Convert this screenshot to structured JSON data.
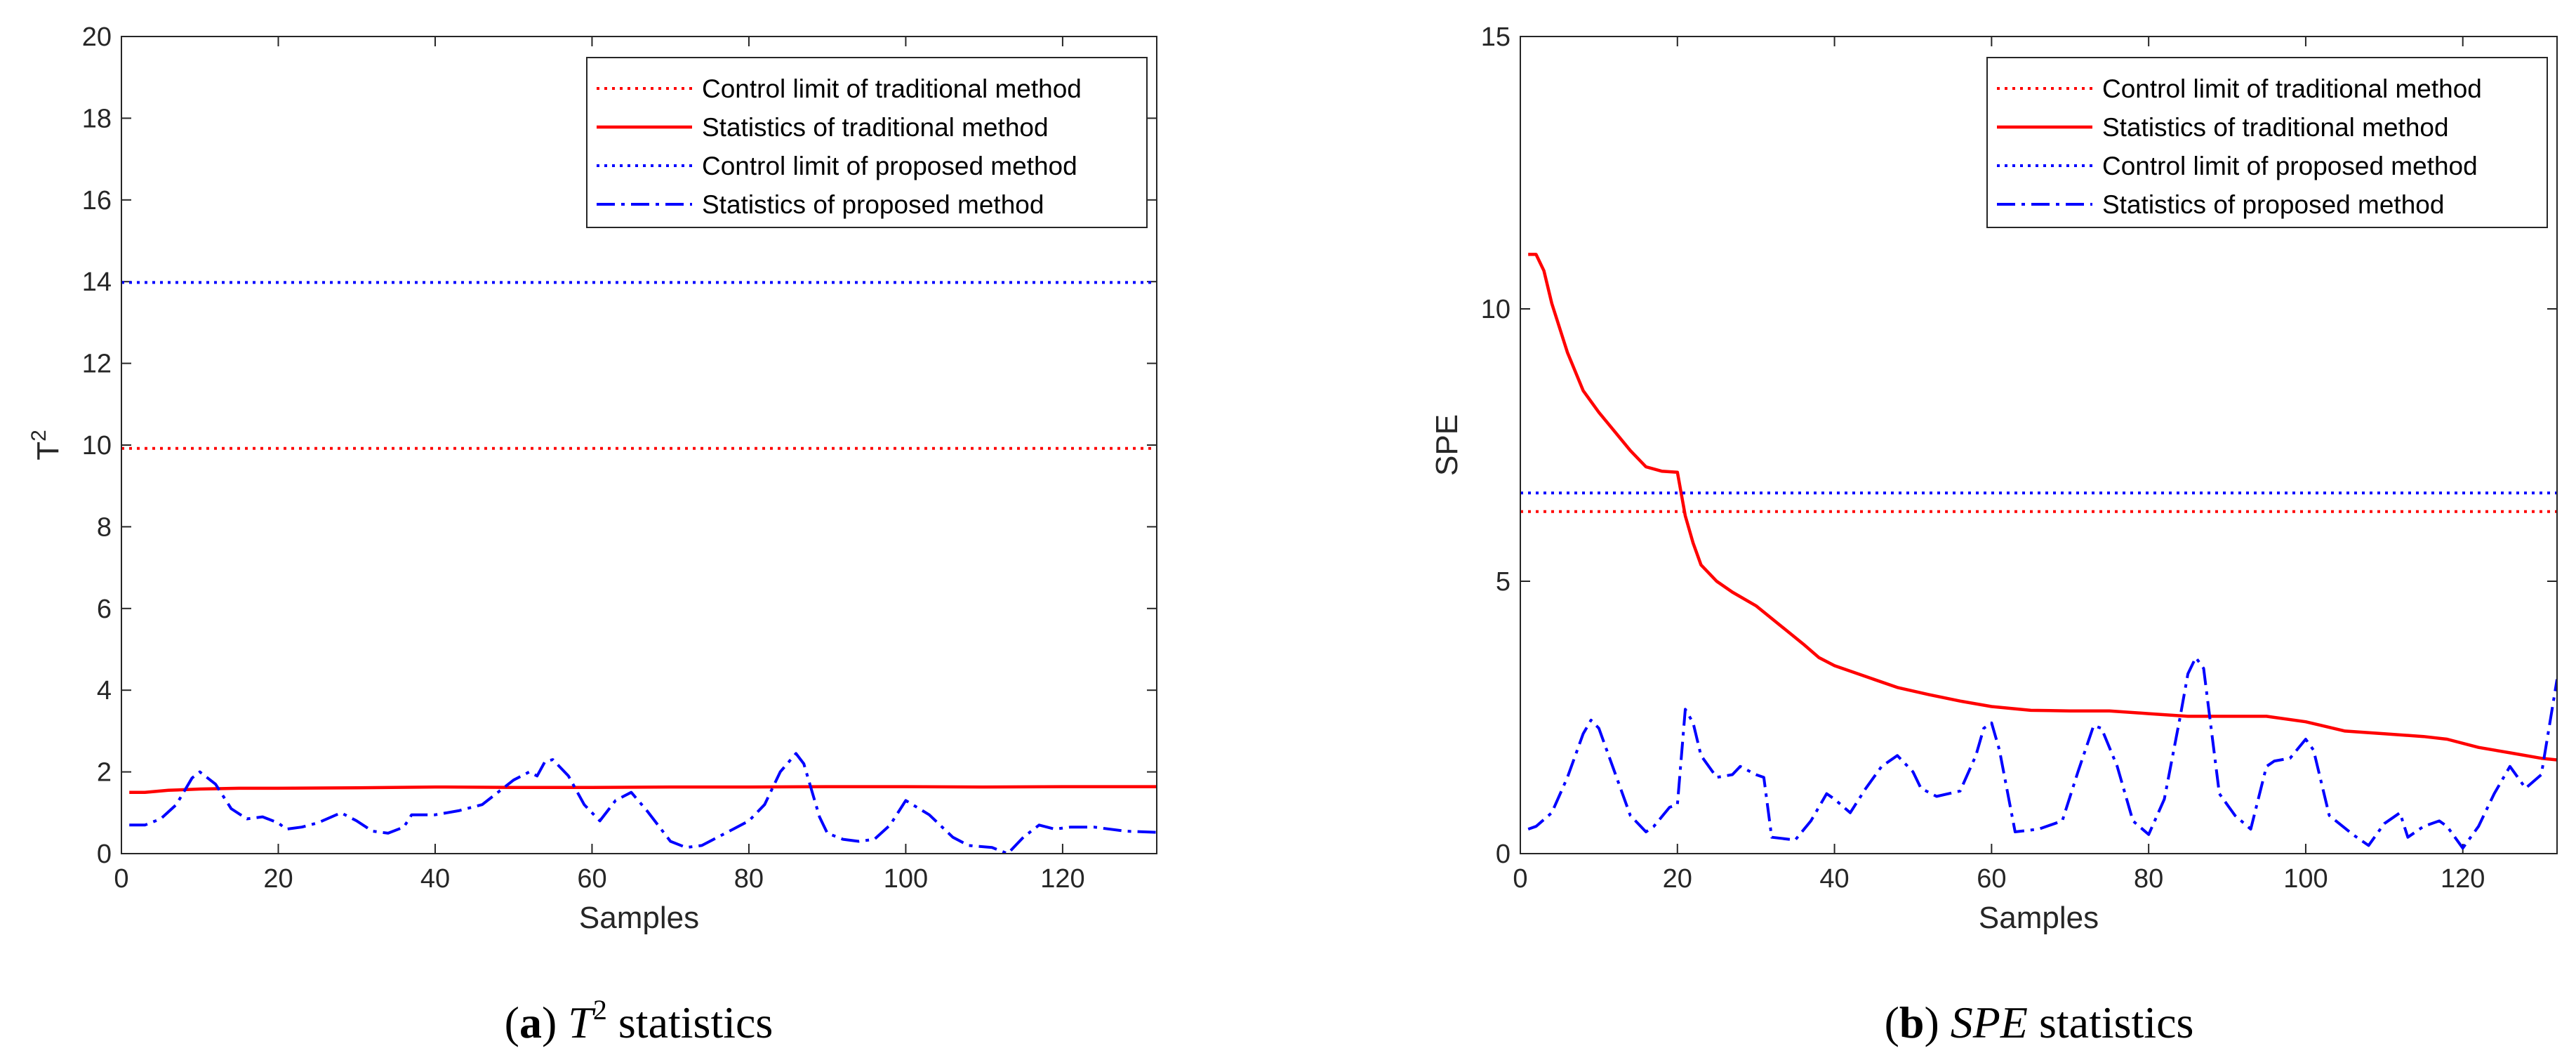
{
  "chart_data": [
    {
      "type": "line",
      "panel": "a",
      "caption": {
        "letter": "a",
        "symbol": "T",
        "sup": "2",
        "rest": " statistics"
      },
      "xlabel": "Samples",
      "ylabel": {
        "main": "T",
        "sup": "2"
      },
      "xlim": [
        0,
        132
      ],
      "ylim": [
        0,
        20
      ],
      "xticks": [
        0,
        20,
        40,
        60,
        80,
        100,
        120
      ],
      "yticks": [
        0,
        2,
        4,
        6,
        8,
        10,
        12,
        14,
        16,
        18,
        20
      ],
      "legend_position": "top-right",
      "series": [
        {
          "name": "Control limit of traditional method",
          "color": "#ff0000",
          "style": "dotted",
          "points": [
            [
              0,
              9.92
            ],
            [
              132,
              9.92
            ]
          ]
        },
        {
          "name": "Statistics of traditional method",
          "color": "#ff0000",
          "style": "solid",
          "points": [
            [
              1,
              1.5
            ],
            [
              3,
              1.5
            ],
            [
              6,
              1.55
            ],
            [
              10,
              1.58
            ],
            [
              15,
              1.6
            ],
            [
              20,
              1.6
            ],
            [
              30,
              1.61
            ],
            [
              40,
              1.63
            ],
            [
              50,
              1.62
            ],
            [
              60,
              1.62
            ],
            [
              70,
              1.63
            ],
            [
              80,
              1.63
            ],
            [
              90,
              1.64
            ],
            [
              100,
              1.64
            ],
            [
              110,
              1.63
            ],
            [
              120,
              1.64
            ],
            [
              132,
              1.64
            ]
          ]
        },
        {
          "name": "Control limit of proposed method",
          "color": "#0000ff",
          "style": "dotted",
          "points": [
            [
              0,
              13.98
            ],
            [
              132,
              13.98
            ]
          ]
        },
        {
          "name": "Statistics of proposed method",
          "color": "#0000ff",
          "style": "dashdot",
          "points": [
            [
              1,
              0.7
            ],
            [
              3,
              0.7
            ],
            [
              5,
              0.85
            ],
            [
              7,
              1.2
            ],
            [
              9,
              1.85
            ],
            [
              10,
              2.0
            ],
            [
              12,
              1.7
            ],
            [
              14,
              1.1
            ],
            [
              16,
              0.85
            ],
            [
              18,
              0.9
            ],
            [
              20,
              0.75
            ],
            [
              21,
              0.6
            ],
            [
              23,
              0.65
            ],
            [
              25,
              0.75
            ],
            [
              28,
              1.0
            ],
            [
              30,
              0.8
            ],
            [
              32,
              0.55
            ],
            [
              34,
              0.5
            ],
            [
              36,
              0.65
            ],
            [
              37,
              0.95
            ],
            [
              40,
              0.95
            ],
            [
              43,
              1.05
            ],
            [
              46,
              1.2
            ],
            [
              48,
              1.5
            ],
            [
              50,
              1.8
            ],
            [
              52,
              2.0
            ],
            [
              53,
              1.9
            ],
            [
              54,
              2.25
            ],
            [
              55,
              2.3
            ],
            [
              57,
              1.9
            ],
            [
              59,
              1.2
            ],
            [
              61,
              0.8
            ],
            [
              63,
              1.3
            ],
            [
              65,
              1.5
            ],
            [
              67,
              1.05
            ],
            [
              70,
              0.3
            ],
            [
              72,
              0.15
            ],
            [
              74,
              0.2
            ],
            [
              78,
              0.6
            ],
            [
              80,
              0.8
            ],
            [
              82,
              1.2
            ],
            [
              84,
              2.0
            ],
            [
              86,
              2.45
            ],
            [
              87,
              2.2
            ],
            [
              89,
              0.9
            ],
            [
              90,
              0.5
            ],
            [
              92,
              0.35
            ],
            [
              94,
              0.3
            ],
            [
              96,
              0.35
            ],
            [
              98,
              0.7
            ],
            [
              100,
              1.3
            ],
            [
              103,
              0.95
            ],
            [
              106,
              0.4
            ],
            [
              108,
              0.2
            ],
            [
              111,
              0.15
            ],
            [
              113,
              0.0
            ],
            [
              115,
              0.4
            ],
            [
              117,
              0.7
            ],
            [
              119,
              0.6
            ],
            [
              121,
              0.65
            ],
            [
              124,
              0.65
            ],
            [
              128,
              0.55
            ],
            [
              132,
              0.52
            ]
          ]
        }
      ]
    },
    {
      "type": "line",
      "panel": "b",
      "caption": {
        "letter": "b",
        "symbol": "SPE",
        "sup": "",
        "rest": " statistics"
      },
      "xlabel": "Samples",
      "ylabel": {
        "main": "SPE",
        "sup": ""
      },
      "xlim": [
        0,
        132
      ],
      "ylim": [
        0,
        15
      ],
      "xticks": [
        0,
        20,
        40,
        60,
        80,
        100,
        120
      ],
      "yticks": [
        0,
        5,
        10,
        15
      ],
      "legend_position": "top-right",
      "series": [
        {
          "name": "Control limit of traditional method",
          "color": "#ff0000",
          "style": "dotted",
          "points": [
            [
              0,
              6.28
            ],
            [
              132,
              6.28
            ]
          ]
        },
        {
          "name": "Statistics of traditional method",
          "color": "#ff0000",
          "style": "solid",
          "points": [
            [
              1,
              11.0
            ],
            [
              2,
              11.0
            ],
            [
              3,
              10.7
            ],
            [
              4,
              10.1
            ],
            [
              6,
              9.2
            ],
            [
              8,
              8.5
            ],
            [
              10,
              8.1
            ],
            [
              12,
              7.75
            ],
            [
              14,
              7.4
            ],
            [
              16,
              7.1
            ],
            [
              18,
              7.02
            ],
            [
              20,
              7.0
            ],
            [
              21,
              6.2
            ],
            [
              22,
              5.7
            ],
            [
              23,
              5.3
            ],
            [
              25,
              5.0
            ],
            [
              27,
              4.8
            ],
            [
              30,
              4.55
            ],
            [
              33,
              4.2
            ],
            [
              36,
              3.85
            ],
            [
              38,
              3.6
            ],
            [
              40,
              3.45
            ],
            [
              44,
              3.25
            ],
            [
              48,
              3.05
            ],
            [
              52,
              2.92
            ],
            [
              56,
              2.8
            ],
            [
              60,
              2.7
            ],
            [
              65,
              2.63
            ],
            [
              70,
              2.62
            ],
            [
              75,
              2.62
            ],
            [
              80,
              2.57
            ],
            [
              85,
              2.52
            ],
            [
              90,
              2.52
            ],
            [
              95,
              2.52
            ],
            [
              100,
              2.42
            ],
            [
              105,
              2.25
            ],
            [
              110,
              2.2
            ],
            [
              115,
              2.15
            ],
            [
              118,
              2.1
            ],
            [
              122,
              1.95
            ],
            [
              126,
              1.85
            ],
            [
              130,
              1.75
            ],
            [
              132,
              1.72
            ]
          ]
        },
        {
          "name": "Control limit of proposed method",
          "color": "#0000ff",
          "style": "dotted",
          "points": [
            [
              0,
              6.62
            ],
            [
              132,
              6.62
            ]
          ]
        },
        {
          "name": "Statistics of proposed method",
          "color": "#0000ff",
          "style": "dashdot",
          "points": [
            [
              1,
              0.45
            ],
            [
              2,
              0.5
            ],
            [
              4,
              0.75
            ],
            [
              6,
              1.4
            ],
            [
              8,
              2.2
            ],
            [
              9,
              2.45
            ],
            [
              10,
              2.3
            ],
            [
              12,
              1.5
            ],
            [
              14,
              0.7
            ],
            [
              16,
              0.4
            ],
            [
              17,
              0.5
            ],
            [
              19,
              0.85
            ],
            [
              20,
              0.9
            ],
            [
              21,
              2.65
            ],
            [
              22,
              2.4
            ],
            [
              23,
              1.8
            ],
            [
              25,
              1.4
            ],
            [
              27,
              1.45
            ],
            [
              28,
              1.6
            ],
            [
              30,
              1.45
            ],
            [
              31,
              1.4
            ],
            [
              32,
              0.3
            ],
            [
              35,
              0.25
            ],
            [
              37,
              0.6
            ],
            [
              39,
              1.1
            ],
            [
              40,
              1.0
            ],
            [
              42,
              0.75
            ],
            [
              44,
              1.2
            ],
            [
              46,
              1.6
            ],
            [
              48,
              1.8
            ],
            [
              50,
              1.5
            ],
            [
              51,
              1.2
            ],
            [
              53,
              1.05
            ],
            [
              56,
              1.15
            ],
            [
              58,
              1.8
            ],
            [
              59,
              2.3
            ],
            [
              60,
              2.4
            ],
            [
              61,
              1.9
            ],
            [
              63,
              0.4
            ],
            [
              66,
              0.45
            ],
            [
              69,
              0.6
            ],
            [
              71,
              1.5
            ],
            [
              73,
              2.35
            ],
            [
              74,
              2.3
            ],
            [
              76,
              1.6
            ],
            [
              78,
              0.6
            ],
            [
              80,
              0.35
            ],
            [
              82,
              1.0
            ],
            [
              84,
              2.5
            ],
            [
              85,
              3.3
            ],
            [
              86,
              3.6
            ],
            [
              87,
              3.4
            ],
            [
              89,
              1.1
            ],
            [
              91,
              0.7
            ],
            [
              93,
              0.45
            ],
            [
              95,
              1.6
            ],
            [
              96,
              1.7
            ],
            [
              98,
              1.75
            ],
            [
              100,
              2.1
            ],
            [
              101,
              1.9
            ],
            [
              103,
              0.7
            ],
            [
              106,
              0.35
            ],
            [
              108,
              0.15
            ],
            [
              110,
              0.55
            ],
            [
              112,
              0.75
            ],
            [
              113,
              0.3
            ],
            [
              115,
              0.5
            ],
            [
              117,
              0.6
            ],
            [
              118,
              0.5
            ],
            [
              120,
              0.1
            ],
            [
              122,
              0.5
            ],
            [
              124,
              1.1
            ],
            [
              126,
              1.6
            ],
            [
              128,
              1.2
            ],
            [
              130,
              1.45
            ],
            [
              132,
              3.2
            ]
          ]
        }
      ]
    }
  ]
}
